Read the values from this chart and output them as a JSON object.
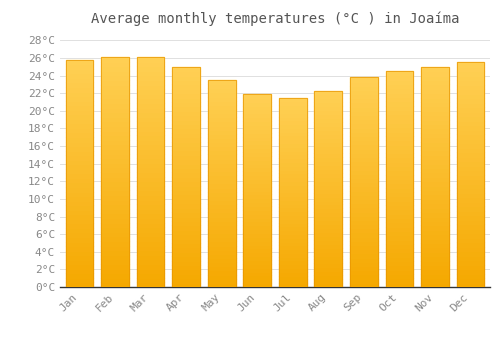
{
  "title": "Average monthly temperatures (°C ) in Joaíma",
  "months": [
    "Jan",
    "Feb",
    "Mar",
    "Apr",
    "May",
    "Jun",
    "Jul",
    "Aug",
    "Sep",
    "Oct",
    "Nov",
    "Dec"
  ],
  "values": [
    25.8,
    26.1,
    26.1,
    25.0,
    23.5,
    21.9,
    21.5,
    22.3,
    23.8,
    24.5,
    25.0,
    25.5
  ],
  "bar_color_top": "#FFC84A",
  "bar_color_bottom": "#F5A800",
  "bar_edge_color": "#E89500",
  "ylim": [
    0,
    29
  ],
  "ytick_step": 2,
  "background_color": "#FFFFFF",
  "grid_color": "#E0E0E0",
  "title_fontsize": 10,
  "tick_fontsize": 8,
  "font_family": "monospace",
  "tick_color": "#888888",
  "title_color": "#555555"
}
